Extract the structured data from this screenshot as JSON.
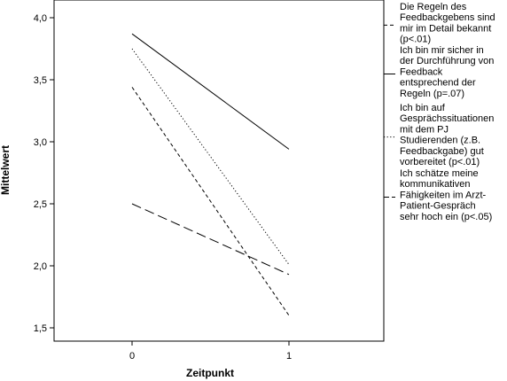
{
  "chart_data": {
    "type": "line",
    "title": "",
    "xlabel": "Zeitpunkt",
    "ylabel": "Mittelwert",
    "x": [
      0,
      1
    ],
    "x_tick_labels": [
      "0",
      "1"
    ],
    "ylim": [
      1.5,
      4.0
    ],
    "y_tick_labels": [
      "1,5",
      "2,0",
      "2,5",
      "3,0",
      "3,5",
      "4,0"
    ],
    "y_ticks": [
      1.5,
      2.0,
      2.5,
      3.0,
      3.5,
      4.0
    ],
    "grid": false,
    "legend_position": "right",
    "series": [
      {
        "name": "Die Regeln des Feedbackgebens sind mir im Detail bekannt (p<.01)",
        "legend_lines": [
          "Die Regeln des",
          "Feedbackgebens sind",
          "mir im Detail bekannt",
          "(p<.01)"
        ],
        "style": "dashed-fine",
        "values": [
          3.44,
          1.6
        ]
      },
      {
        "name": "Ich bin mir sicher in der Durchführung von Feedback entsprechend der Regeln (p=.07)",
        "legend_lines": [
          "Ich bin mir sicher in",
          "der Durchführung von",
          "Feedback",
          "entsprechend der",
          "Regeln (p=.07)"
        ],
        "style": "solid",
        "values": [
          3.87,
          2.94
        ]
      },
      {
        "name": "Ich bin auf Gesprächssituationen mit dem PJ Studierenden (z.B. Feedbackgabe) gut vorbereitet (p<.01)",
        "legend_lines": [
          "Ich bin auf",
          "Gesprächssituationen",
          "mit dem PJ",
          "Studierenden (z.B.",
          "Feedbackgabe) gut",
          "vorbereitet (p<.01)"
        ],
        "style": "dotted",
        "values": [
          3.75,
          2.01
        ]
      },
      {
        "name": "Ich schätze meine kommunikativen Fähigkeiten im Arzt-Patient-Gespräch sehr hoch ein (p<.05)",
        "legend_lines": [
          "Ich schätze meine",
          "kommunikativen",
          "Fähigkeiten im Arzt-",
          "Patient-Gespräch",
          "sehr hoch ein (p<.05)"
        ],
        "style": "dashed-long",
        "values": [
          2.5,
          1.93
        ]
      }
    ]
  }
}
